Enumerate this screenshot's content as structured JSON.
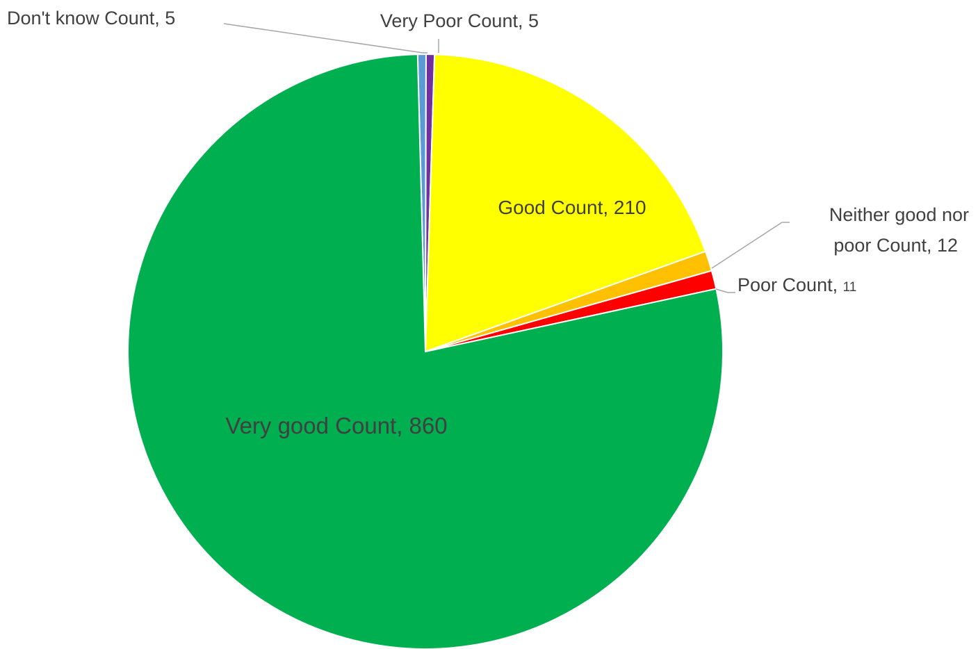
{
  "chart_data": {
    "type": "pie",
    "categories": [
      "Don't know Count",
      "Very Poor Count",
      "Good Count",
      "Neither good nor poor Count",
      "Poor Count",
      "Very good Count"
    ],
    "values": [
      5,
      5,
      210,
      12,
      11,
      860
    ],
    "colors": [
      "#5B9BD5",
      "#7030A0",
      "#FFFF00",
      "#FFC000",
      "#FF0000",
      "#00B050"
    ],
    "start_angle_deg": -1.5,
    "direction": "clockwise",
    "labels": [
      {
        "text": "Don't know Count, 5"
      },
      {
        "text": "Very Poor Count, 5"
      },
      {
        "text": "Good Count, 210"
      },
      {
        "line1": "Neither good nor",
        "line2": "poor Count, 12"
      },
      {
        "name": "Poor Count",
        "sep": ", ",
        "num": "11"
      },
      {
        "text": "Very good Count, 860"
      }
    ]
  }
}
